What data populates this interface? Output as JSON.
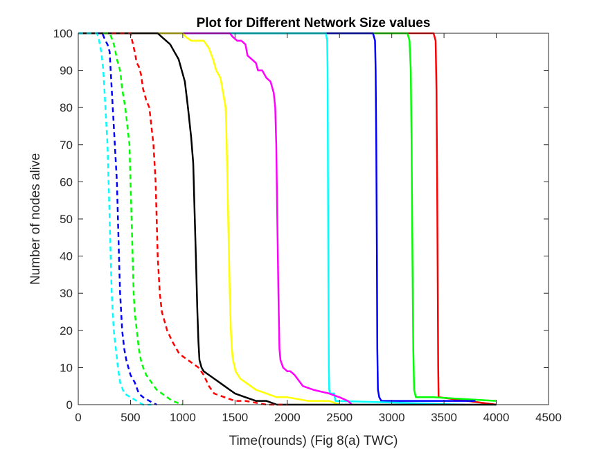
{
  "chart_data": {
    "type": "line",
    "title": "Plot for Different Network Size values",
    "xlabel": "Time(rounds) (Fig 8(a) TWC)",
    "ylabel": "Number of nodes alive",
    "xlim": [
      0,
      4500
    ],
    "ylim": [
      0,
      100
    ],
    "xticks": [
      0,
      500,
      1000,
      1500,
      2000,
      2500,
      3000,
      3500,
      4000,
      4500
    ],
    "yticks": [
      0,
      10,
      20,
      30,
      40,
      50,
      60,
      70,
      80,
      90,
      100
    ],
    "grid": false,
    "legend": "none",
    "series": [
      {
        "color": "#ff0000",
        "style": "solid",
        "x": [
          0,
          3400,
          3420,
          3428,
          3434,
          3440,
          3444,
          3448,
          3452,
          4000
        ],
        "y": [
          100,
          100,
          98,
          85,
          60,
          30,
          10,
          2,
          2,
          0
        ]
      },
      {
        "color": "#00ff00",
        "style": "solid",
        "x": [
          0,
          3150,
          3170,
          3182,
          3190,
          3198,
          3206,
          3214,
          3230,
          3400,
          4000
        ],
        "y": [
          100,
          100,
          98,
          90,
          70,
          40,
          15,
          4,
          2,
          2,
          1
        ]
      },
      {
        "color": "#0000ff",
        "style": "solid",
        "x": [
          0,
          2820,
          2840,
          2846,
          2852,
          2858,
          2862,
          2868,
          2880,
          2900,
          3800
        ],
        "y": [
          100,
          100,
          98,
          90,
          70,
          40,
          15,
          4,
          2,
          1,
          1
        ]
      },
      {
        "color": "#00ffff",
        "style": "solid",
        "x": [
          0,
          2370,
          2382,
          2386,
          2390,
          2394,
          2398,
          2402,
          2410,
          2450,
          2460,
          3700
        ],
        "y": [
          100,
          100,
          98,
          90,
          60,
          30,
          10,
          4,
          3,
          3,
          1,
          0
        ]
      },
      {
        "color": "#ff00ff",
        "style": "solid",
        "x": [
          0,
          1450,
          1480,
          1520,
          1560,
          1600,
          1620,
          1660,
          1700,
          1720,
          1760,
          1800,
          1840,
          1870,
          1885,
          1895,
          1905,
          1915,
          1925,
          1935,
          1960,
          2000,
          2030,
          2070,
          2150,
          2250,
          2400,
          2500,
          2580,
          2620
        ],
        "y": [
          100,
          100,
          99,
          98,
          98,
          97,
          94,
          93,
          92,
          90,
          90,
          88,
          87,
          84,
          80,
          70,
          50,
          30,
          15,
          12,
          10,
          9,
          9,
          8,
          5,
          4,
          3,
          2,
          1,
          0
        ]
      },
      {
        "color": "#ffff00",
        "style": "solid",
        "x": [
          0,
          1000,
          1030,
          1080,
          1200,
          1250,
          1290,
          1320,
          1360,
          1380,
          1410,
          1420,
          1435,
          1450,
          1460,
          1470,
          1480,
          1490,
          1505,
          1550,
          1600,
          1650,
          1700,
          1800,
          1900,
          2000,
          2200,
          2400,
          2500
        ],
        "y": [
          100,
          100,
          99,
          98,
          98,
          96,
          93,
          90,
          88,
          85,
          80,
          70,
          50,
          30,
          20,
          15,
          12,
          11,
          9,
          7,
          6,
          5,
          4,
          3,
          2,
          2,
          1,
          1,
          0
        ]
      },
      {
        "color": "#000000",
        "style": "solid",
        "x": [
          0,
          760,
          800,
          840,
          880,
          920,
          960,
          990,
          1020,
          1050,
          1080,
          1100,
          1110,
          1125,
          1140,
          1150,
          1160,
          1170,
          1180,
          1200,
          1250,
          1300,
          1350,
          1400,
          1450,
          1500,
          1600,
          1700,
          1800,
          1900,
          2100,
          2300,
          2600,
          2900,
          3300,
          4000
        ],
        "y": [
          100,
          100,
          99,
          98,
          97,
          95,
          93,
          90,
          87,
          80,
          72,
          65,
          55,
          40,
          25,
          17,
          12,
          11,
          10,
          9,
          8,
          7,
          6,
          5,
          4,
          3,
          2,
          1,
          1,
          0,
          0,
          0,
          0,
          0,
          0,
          0
        ]
      },
      {
        "color": "#ff0000",
        "style": "dashed",
        "x": [
          0,
          500,
          540,
          560,
          580,
          600,
          620,
          650,
          680,
          700,
          720,
          740,
          750,
          760,
          780,
          800,
          850,
          900,
          960,
          1000,
          1050,
          1100,
          1150,
          1200,
          1250,
          1300,
          1400,
          1500,
          1600,
          1800,
          2000
        ],
        "y": [
          100,
          100,
          95,
          92,
          91,
          89,
          85,
          82,
          80,
          75,
          70,
          60,
          50,
          40,
          30,
          25,
          20,
          17,
          14,
          13,
          12,
          11,
          10,
          8,
          5,
          3,
          2,
          1,
          1,
          0,
          0
        ]
      },
      {
        "color": "#00ff00",
        "style": "dashed",
        "x": [
          0,
          300,
          330,
          350,
          370,
          400,
          420,
          450,
          470,
          490,
          500,
          510,
          520,
          530,
          540,
          560,
          580,
          600,
          620,
          650,
          700,
          750,
          800,
          850,
          900,
          1000
        ],
        "y": [
          100,
          100,
          98,
          96,
          93,
          90,
          85,
          80,
          75,
          70,
          60,
          50,
          40,
          30,
          25,
          20,
          15,
          12,
          10,
          8,
          6,
          4,
          3,
          2,
          1,
          0
        ]
      },
      {
        "color": "#0000ff",
        "style": "dashed",
        "x": [
          0,
          230,
          260,
          280,
          300,
          310,
          320,
          330,
          340,
          350,
          360,
          370,
          380,
          390,
          400,
          410,
          420,
          440,
          460,
          480,
          500,
          540,
          580,
          620,
          680,
          750
        ],
        "y": [
          100,
          100,
          98,
          97,
          95,
          90,
          85,
          80,
          75,
          70,
          65,
          60,
          50,
          40,
          30,
          25,
          20,
          15,
          12,
          10,
          8,
          6,
          3,
          2,
          1,
          0
        ]
      },
      {
        "color": "#00ffff",
        "style": "dashed",
        "x": [
          0,
          180,
          200,
          220,
          240,
          250,
          260,
          270,
          280,
          290,
          300,
          310,
          320,
          340,
          360,
          380,
          400,
          440,
          500,
          560,
          620,
          700
        ],
        "y": [
          100,
          100,
          98,
          95,
          90,
          85,
          80,
          75,
          70,
          60,
          50,
          40,
          30,
          20,
          15,
          10,
          6,
          3,
          2,
          1,
          0,
          0
        ]
      }
    ]
  }
}
